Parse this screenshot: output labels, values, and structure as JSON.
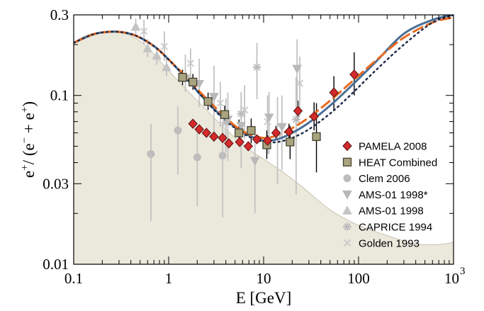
{
  "chart_data": {
    "type": "scatter",
    "title": "",
    "xlabel": "E  [GeV]",
    "ylabel_parts": [
      "e",
      "+",
      "/ (e",
      "−",
      " + e",
      "+",
      ")"
    ],
    "x_scale": "log",
    "y_scale": "log",
    "xlim": [
      0.1,
      1000
    ],
    "ylim": [
      0.01,
      0.3
    ],
    "x_ticks": [
      {
        "value": 0.1,
        "label": "0.1"
      },
      {
        "value": 1,
        "label": "1"
      },
      {
        "value": 10,
        "label": "10"
      },
      {
        "value": 100,
        "label": "100"
      },
      {
        "value": 1000,
        "label": "10",
        "exponent": "3"
      }
    ],
    "y_ticks": [
      {
        "value": 0.01,
        "label": "0.01"
      },
      {
        "value": 0.03,
        "label": "0.03"
      },
      {
        "value": 0.1,
        "label": "0.1"
      },
      {
        "value": 0.3,
        "label": "0.3"
      }
    ],
    "grid": false,
    "legend_position": "right",
    "background_band": {
      "color": "#ebe8dc",
      "x": [
        0.1,
        0.13,
        0.18,
        0.25,
        0.35,
        0.5,
        0.7,
        1.0,
        1.5,
        2.5,
        4,
        7,
        10,
        15,
        25,
        50,
        100,
        200,
        400,
        700,
        1000
      ],
      "upper": [
        0.205,
        0.225,
        0.236,
        0.238,
        0.232,
        0.21,
        0.175,
        0.14,
        0.11,
        0.082,
        0.063,
        0.048,
        0.042,
        0.036,
        0.029,
        0.021,
        0.017,
        0.0148,
        0.0132,
        0.0131,
        0.0135
      ]
    },
    "curves": [
      {
        "style": "solid",
        "color": "#4b6f98",
        "width": 3,
        "x": [
          0.1,
          0.15,
          0.2,
          0.3,
          0.45,
          0.7,
          1.0,
          1.5,
          2.2,
          3.3,
          5,
          7,
          10,
          14,
          20,
          30,
          50,
          80,
          150,
          300,
          600,
          1000
        ],
        "y": [
          0.205,
          0.227,
          0.236,
          0.238,
          0.226,
          0.196,
          0.163,
          0.128,
          0.1,
          0.079,
          0.065,
          0.058,
          0.054,
          0.055,
          0.06,
          0.069,
          0.087,
          0.111,
          0.157,
          0.232,
          0.28,
          0.3
        ]
      },
      {
        "style": "dashed",
        "color": "#ea6a1e",
        "width": 3,
        "x": [
          0.1,
          0.15,
          0.2,
          0.3,
          0.45,
          0.7,
          1.0,
          1.5,
          2.2,
          3.3,
          5,
          7,
          10,
          14,
          20,
          30,
          50,
          80,
          150,
          300,
          600,
          1000
        ],
        "y": [
          0.205,
          0.227,
          0.236,
          0.238,
          0.226,
          0.196,
          0.163,
          0.13,
          0.103,
          0.082,
          0.066,
          0.059,
          0.056,
          0.058,
          0.064,
          0.074,
          0.093,
          0.117,
          0.16,
          0.22,
          0.27,
          0.29
        ]
      },
      {
        "style": "dotted",
        "color": "#1e2b48",
        "width": 2.5,
        "x": [
          0.1,
          0.15,
          0.2,
          0.3,
          0.45,
          0.7,
          1.0,
          1.5,
          2.2,
          3.3,
          5,
          7,
          10,
          14,
          20,
          30,
          50,
          80,
          150,
          300,
          600,
          1000
        ],
        "y": [
          0.205,
          0.227,
          0.236,
          0.238,
          0.226,
          0.196,
          0.163,
          0.128,
          0.1,
          0.078,
          0.064,
          0.057,
          0.053,
          0.053,
          0.056,
          0.063,
          0.078,
          0.099,
          0.14,
          0.2,
          0.27,
          0.3
        ]
      }
    ],
    "series": [
      {
        "name": "PAMELA 2008",
        "marker": "diamond",
        "color": "#d42a2a",
        "stroke": "#5a1010",
        "points": [
          {
            "x": 1.8,
            "y": 0.068,
            "lo": 0.066,
            "hi": 0.07
          },
          {
            "x": 2.1,
            "y": 0.063,
            "lo": 0.061,
            "hi": 0.065
          },
          {
            "x": 2.5,
            "y": 0.06,
            "lo": 0.058,
            "hi": 0.062
          },
          {
            "x": 3.0,
            "y": 0.057,
            "lo": 0.055,
            "hi": 0.059
          },
          {
            "x": 3.7,
            "y": 0.056,
            "lo": 0.054,
            "hi": 0.058
          },
          {
            "x": 4.3,
            "y": 0.052,
            "lo": 0.05,
            "hi": 0.054
          },
          {
            "x": 5.6,
            "y": 0.053,
            "lo": 0.051,
            "hi": 0.055
          },
          {
            "x": 6.9,
            "y": 0.05,
            "lo": 0.048,
            "hi": 0.052
          },
          {
            "x": 8.5,
            "y": 0.055,
            "lo": 0.052,
            "hi": 0.058
          },
          {
            "x": 11.0,
            "y": 0.054,
            "lo": 0.05,
            "hi": 0.058
          },
          {
            "x": 13.5,
            "y": 0.06,
            "lo": 0.055,
            "hi": 0.066
          },
          {
            "x": 18.5,
            "y": 0.061,
            "lo": 0.055,
            "hi": 0.068
          },
          {
            "x": 23.0,
            "y": 0.081,
            "lo": 0.071,
            "hi": 0.093
          },
          {
            "x": 34.0,
            "y": 0.075,
            "lo": 0.062,
            "hi": 0.091
          },
          {
            "x": 55.0,
            "y": 0.104,
            "lo": 0.082,
            "hi": 0.13
          },
          {
            "x": 90.0,
            "y": 0.133,
            "lo": 0.1,
            "hi": 0.18
          }
        ]
      },
      {
        "name": "HEAT Combined",
        "marker": "square",
        "color": "#a8a37e",
        "stroke": "#3d3a2a",
        "points": [
          {
            "x": 1.4,
            "y": 0.128,
            "lo": 0.115,
            "hi": 0.142
          },
          {
            "x": 1.8,
            "y": 0.12,
            "lo": 0.108,
            "hi": 0.134
          },
          {
            "x": 2.6,
            "y": 0.092,
            "lo": 0.082,
            "hi": 0.104
          },
          {
            "x": 3.9,
            "y": 0.077,
            "lo": 0.068,
            "hi": 0.087
          },
          {
            "x": 5.5,
            "y": 0.06,
            "lo": 0.05,
            "hi": 0.072
          },
          {
            "x": 7.4,
            "y": 0.062,
            "lo": 0.052,
            "hi": 0.073
          },
          {
            "x": 10.8,
            "y": 0.051,
            "lo": 0.042,
            "hi": 0.062
          },
          {
            "x": 19.0,
            "y": 0.053,
            "lo": 0.042,
            "hi": 0.066
          },
          {
            "x": 36.0,
            "y": 0.057,
            "lo": 0.035,
            "hi": 0.09
          }
        ]
      },
      {
        "name": "Clem 2006",
        "marker": "circle",
        "color": "#bdbdbd",
        "stroke": "#bdbdbd",
        "points": [
          {
            "x": 0.65,
            "y": 0.045,
            "lo": 0.018,
            "hi": 0.068
          },
          {
            "x": 1.25,
            "y": 0.062,
            "lo": 0.034,
            "hi": 0.086
          },
          {
            "x": 2.0,
            "y": 0.043,
            "lo": 0.022,
            "hi": 0.066
          },
          {
            "x": 3.7,
            "y": 0.044,
            "lo": 0.019,
            "hi": 0.07
          }
        ]
      },
      {
        "name": "AMS-01 1998*",
        "marker": "triangle-down",
        "color": "#b8b8b8",
        "stroke": "#b8b8b8",
        "points": [
          {
            "x": 1.5,
            "y": 0.126,
            "lo": 0.105,
            "hi": 0.175
          },
          {
            "x": 2.1,
            "y": 0.117,
            "lo": 0.085,
            "hi": 0.165
          },
          {
            "x": 3.0,
            "y": 0.098,
            "lo": 0.06,
            "hi": 0.15
          },
          {
            "x": 4.2,
            "y": 0.072,
            "lo": 0.041,
            "hi": 0.104
          },
          {
            "x": 5.8,
            "y": 0.066,
            "lo": 0.037,
            "hi": 0.1
          },
          {
            "x": 8.1,
            "y": 0.041,
            "lo": 0.02,
            "hi": 0.065
          },
          {
            "x": 11.4,
            "y": 0.074,
            "lo": 0.045,
            "hi": 0.105
          },
          {
            "x": 15.6,
            "y": 0.065,
            "lo": 0.036,
            "hi": 0.1
          },
          {
            "x": 22.5,
            "y": 0.144,
            "lo": 0.092,
            "hi": 0.215
          }
        ]
      },
      {
        "name": "AMS-01 1998",
        "marker": "triangle-up",
        "color": "#c4c4c4",
        "stroke": "#c4c4c4",
        "points": [
          {
            "x": 0.45,
            "y": 0.255,
            "lo": 0.225,
            "hi": 0.285
          },
          {
            "x": 0.6,
            "y": 0.19,
            "lo": 0.168,
            "hi": 0.215
          },
          {
            "x": 0.75,
            "y": 0.172,
            "lo": 0.152,
            "hi": 0.195
          },
          {
            "x": 0.95,
            "y": 0.147,
            "lo": 0.13,
            "hi": 0.166
          }
        ]
      },
      {
        "name": "CAPRICE 1994",
        "marker": "star",
        "color": "#bcbcbc",
        "stroke": "#bcbcbc",
        "points": [
          {
            "x": 4.0,
            "y": 0.069,
            "lo": 0.046,
            "hi": 0.096
          },
          {
            "x": 5.8,
            "y": 0.078,
            "lo": 0.052,
            "hi": 0.105
          },
          {
            "x": 8.5,
            "y": 0.147,
            "lo": 0.095,
            "hi": 0.205
          },
          {
            "x": 14.0,
            "y": 0.059,
            "lo": 0.03,
            "hi": 0.098
          },
          {
            "x": 22.0,
            "y": 0.072,
            "lo": 0.026,
            "hi": 0.128
          }
        ]
      },
      {
        "name": "Golden 1993",
        "marker": "cross",
        "color": "#c8c8c8",
        "stroke": "#c8c8c8",
        "points": [
          {
            "x": 0.55,
            "y": 0.24,
            "lo": 0.2,
            "hi": 0.28
          },
          {
            "x": 0.9,
            "y": 0.195,
            "lo": 0.16,
            "hi": 0.24
          },
          {
            "x": 1.7,
            "y": 0.155,
            "lo": 0.125,
            "hi": 0.19
          },
          {
            "x": 3.5,
            "y": 0.09,
            "lo": 0.065,
            "hi": 0.12
          },
          {
            "x": 6.3,
            "y": 0.082,
            "lo": 0.055,
            "hi": 0.115
          },
          {
            "x": 11.0,
            "y": 0.07,
            "lo": 0.045,
            "hi": 0.1
          },
          {
            "x": 24.0,
            "y": 0.118,
            "lo": 0.075,
            "hi": 0.17
          }
        ]
      }
    ]
  }
}
